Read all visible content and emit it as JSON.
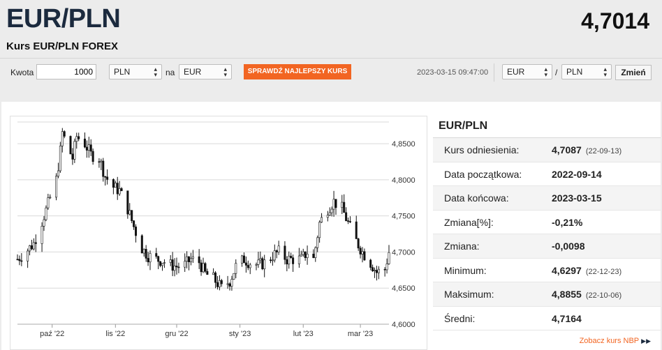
{
  "header": {
    "pair": "EUR/PLN",
    "rate": "4,7014",
    "subtitle": "Kurs EUR/PLN FOREX"
  },
  "converter": {
    "amount_label": "Kwota",
    "amount_value": "1000",
    "from_currency": "PLN",
    "na_label": "na",
    "to_currency": "EUR",
    "best_button": "SPRAWDŹ NAJLEPSZY KURS",
    "timestamp": "2023-03-15 09:47:00",
    "pair_base": "EUR",
    "slash": "/",
    "pair_quote": "PLN",
    "change_button": "Zmień"
  },
  "stats": {
    "title": "EUR/PLN",
    "rows": [
      {
        "label": "Kurs odniesienia:",
        "value": "4,7087",
        "date": "(22-09-13)"
      },
      {
        "label": "Data początkowa:",
        "value": "2022-09-14",
        "date": ""
      },
      {
        "label": "Data końcowa:",
        "value": "2023-03-15",
        "date": ""
      },
      {
        "label": "Zmiana[%]:",
        "value": "-0,21%",
        "date": ""
      },
      {
        "label": "Zmiana:",
        "value": "-0,0098",
        "date": ""
      },
      {
        "label": "Minimum:",
        "value": "4,6297",
        "date": "(22-12-23)"
      },
      {
        "label": "Maksimum:",
        "value": "4,8855",
        "date": "(22-10-06)"
      },
      {
        "label": "Średni:",
        "value": "4,7164",
        "date": ""
      }
    ],
    "nbp_link": "Zobacz kurs NBP"
  },
  "chart_data": {
    "type": "candlestick",
    "x_range": [
      "2022-09-14",
      "2023-03-15"
    ],
    "ylim": [
      4.6,
      4.88
    ],
    "y_ticks": [
      "4,8500",
      "4,8000",
      "4,7500",
      "4,7000",
      "4,6500",
      "4,6000"
    ],
    "y_tick_values": [
      4.85,
      4.8,
      4.75,
      4.7,
      4.65,
      4.6
    ],
    "x_ticks": [
      {
        "label": "paź '22",
        "date": "2022-10-01"
      },
      {
        "label": "lis '22",
        "date": "2022-11-01"
      },
      {
        "label": "gru '22",
        "date": "2022-12-01"
      },
      {
        "label": "sty '23",
        "date": "2023-01-01"
      },
      {
        "label": "lut '23",
        "date": "2023-02-01"
      },
      {
        "label": "mar '23",
        "date": "2023-03-01"
      }
    ],
    "close_path": [
      [
        "2022-09-14",
        4.69
      ],
      [
        "2022-09-18",
        4.7
      ],
      [
        "2022-09-22",
        4.712
      ],
      [
        "2022-09-25",
        4.735
      ],
      [
        "2022-09-28",
        4.758
      ],
      [
        "2022-09-30",
        4.775
      ],
      [
        "2022-10-03",
        4.8
      ],
      [
        "2022-10-05",
        4.84
      ],
      [
        "2022-10-06",
        4.865
      ],
      [
        "2022-10-08",
        4.85
      ],
      [
        "2022-10-11",
        4.83
      ],
      [
        "2022-10-13",
        4.86
      ],
      [
        "2022-10-17",
        4.85
      ],
      [
        "2022-10-20",
        4.835
      ],
      [
        "2022-10-24",
        4.83
      ],
      [
        "2022-10-27",
        4.805
      ],
      [
        "2022-10-31",
        4.79
      ],
      [
        "2022-11-03",
        4.785
      ],
      [
        "2022-11-07",
        4.76
      ],
      [
        "2022-11-10",
        4.735
      ],
      [
        "2022-11-14",
        4.705
      ],
      [
        "2022-11-17",
        4.695
      ],
      [
        "2022-11-21",
        4.69
      ],
      [
        "2022-11-24",
        4.688
      ],
      [
        "2022-11-28",
        4.682
      ],
      [
        "2022-12-01",
        4.68
      ],
      [
        "2022-12-05",
        4.682
      ],
      [
        "2022-12-08",
        4.69
      ],
      [
        "2022-12-12",
        4.686
      ],
      [
        "2022-12-15",
        4.67
      ],
      [
        "2022-12-19",
        4.663
      ],
      [
        "2022-12-23",
        4.65
      ],
      [
        "2022-12-27",
        4.66
      ],
      [
        "2022-12-30",
        4.68
      ],
      [
        "2023-01-03",
        4.69
      ],
      [
        "2023-01-06",
        4.685
      ],
      [
        "2023-01-10",
        4.682
      ],
      [
        "2023-01-13",
        4.685
      ],
      [
        "2023-01-17",
        4.695
      ],
      [
        "2023-01-20",
        4.7
      ],
      [
        "2023-01-24",
        4.69
      ],
      [
        "2023-01-27",
        4.69
      ],
      [
        "2023-01-31",
        4.69
      ],
      [
        "2023-02-03",
        4.7
      ],
      [
        "2023-02-06",
        4.69
      ],
      [
        "2023-02-09",
        4.74
      ],
      [
        "2023-02-13",
        4.76
      ],
      [
        "2023-02-16",
        4.77
      ],
      [
        "2023-02-20",
        4.76
      ],
      [
        "2023-02-23",
        4.74
      ],
      [
        "2023-02-27",
        4.715
      ],
      [
        "2023-03-02",
        4.7
      ],
      [
        "2023-03-06",
        4.685
      ],
      [
        "2023-03-09",
        4.672
      ],
      [
        "2023-03-13",
        4.676
      ],
      [
        "2023-03-15",
        4.7
      ]
    ],
    "grid": true
  }
}
